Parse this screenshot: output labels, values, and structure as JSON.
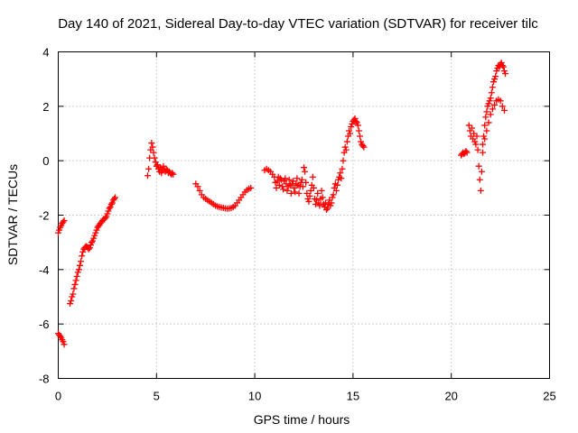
{
  "chart_data": {
    "type": "scatter",
    "title": "Day 140 of 2021, Sidereal Day-to-day VTEC variation (SDTVAR) for receiver tilc",
    "xlabel": "GPS time / hours",
    "ylabel": "SDTVAR / TECUs",
    "xlim": [
      0,
      25
    ],
    "ylim": [
      -8,
      4
    ],
    "xticks": [
      0,
      5,
      10,
      15,
      20,
      25
    ],
    "yticks": [
      -8,
      -6,
      -4,
      -2,
      0,
      2,
      4
    ],
    "xtick_labels": [
      "0",
      "5",
      "10",
      "15",
      "20",
      "25"
    ],
    "ytick_labels": [
      "-8",
      "-6",
      "-4",
      "-2",
      "0",
      "2",
      "4"
    ],
    "grid": true,
    "marker": "+",
    "colors": {
      "series": "#ff0000",
      "grid": "#a0a0a0",
      "frame": "#000000"
    },
    "series": [
      {
        "name": "SDTVAR",
        "points": [
          [
            0.0,
            -6.35
          ],
          [
            0.05,
            -6.4
          ],
          [
            0.1,
            -6.45
          ],
          [
            0.15,
            -6.5
          ],
          [
            0.2,
            -6.58
          ],
          [
            0.25,
            -6.65
          ],
          [
            0.3,
            -6.75
          ],
          [
            0.0,
            -2.65
          ],
          [
            0.05,
            -2.55
          ],
          [
            0.1,
            -2.45
          ],
          [
            0.15,
            -2.38
          ],
          [
            0.2,
            -2.3
          ],
          [
            0.25,
            -2.25
          ],
          [
            0.3,
            -2.2
          ],
          [
            0.6,
            -5.25
          ],
          [
            0.65,
            -5.15
          ],
          [
            0.7,
            -5.0
          ],
          [
            0.75,
            -4.9
          ],
          [
            0.8,
            -4.7
          ],
          [
            0.85,
            -4.55
          ],
          [
            0.9,
            -4.4
          ],
          [
            0.95,
            -4.25
          ],
          [
            1.0,
            -4.1
          ],
          [
            1.05,
            -4.0
          ],
          [
            1.1,
            -3.85
          ],
          [
            1.15,
            -3.7
          ],
          [
            1.2,
            -3.5
          ],
          [
            1.25,
            -3.35
          ],
          [
            1.3,
            -3.25
          ],
          [
            1.35,
            -3.2
          ],
          [
            1.4,
            -3.15
          ],
          [
            1.45,
            -3.15
          ],
          [
            1.5,
            -3.2
          ],
          [
            1.55,
            -3.25
          ],
          [
            1.6,
            -3.2
          ],
          [
            1.65,
            -3.1
          ],
          [
            1.7,
            -3.0
          ],
          [
            1.75,
            -2.95
          ],
          [
            1.8,
            -2.85
          ],
          [
            1.85,
            -2.75
          ],
          [
            1.9,
            -2.65
          ],
          [
            1.95,
            -2.55
          ],
          [
            2.0,
            -2.45
          ],
          [
            2.05,
            -2.4
          ],
          [
            2.1,
            -2.35
          ],
          [
            2.15,
            -2.3
          ],
          [
            2.2,
            -2.25
          ],
          [
            2.25,
            -2.2
          ],
          [
            2.3,
            -2.15
          ],
          [
            2.35,
            -2.15
          ],
          [
            2.4,
            -2.1
          ],
          [
            2.45,
            -2.05
          ],
          [
            2.5,
            -1.95
          ],
          [
            2.55,
            -1.85
          ],
          [
            2.6,
            -1.75
          ],
          [
            2.65,
            -1.7
          ],
          [
            2.7,
            -1.6
          ],
          [
            2.75,
            -1.55
          ],
          [
            2.8,
            -1.45
          ],
          [
            2.85,
            -1.4
          ],
          [
            2.9,
            -1.35
          ],
          [
            4.55,
            -0.55
          ],
          [
            4.6,
            -0.3
          ],
          [
            4.65,
            0.1
          ],
          [
            4.7,
            0.4
          ],
          [
            4.75,
            0.65
          ],
          [
            4.8,
            0.5
          ],
          [
            4.85,
            0.3
          ],
          [
            4.9,
            0.1
          ],
          [
            4.95,
            -0.05
          ],
          [
            5.0,
            -0.2
          ],
          [
            5.05,
            -0.15
          ],
          [
            5.1,
            -0.3
          ],
          [
            5.15,
            -0.4
          ],
          [
            5.2,
            -0.25
          ],
          [
            5.25,
            -0.45
          ],
          [
            5.3,
            -0.35
          ],
          [
            5.35,
            -0.2
          ],
          [
            5.4,
            -0.3
          ],
          [
            5.45,
            -0.4
          ],
          [
            5.5,
            -0.3
          ],
          [
            5.55,
            -0.35
          ],
          [
            5.6,
            -0.45
          ],
          [
            5.65,
            -0.4
          ],
          [
            5.7,
            -0.45
          ],
          [
            5.75,
            -0.5
          ],
          [
            5.8,
            -0.45
          ],
          [
            5.85,
            -0.5
          ],
          [
            7.0,
            -0.85
          ],
          [
            7.1,
            -0.95
          ],
          [
            7.2,
            -1.1
          ],
          [
            7.3,
            -1.25
          ],
          [
            7.4,
            -1.35
          ],
          [
            7.5,
            -1.4
          ],
          [
            7.6,
            -1.45
          ],
          [
            7.7,
            -1.5
          ],
          [
            7.8,
            -1.55
          ],
          [
            7.9,
            -1.6
          ],
          [
            8.0,
            -1.65
          ],
          [
            8.1,
            -1.68
          ],
          [
            8.2,
            -1.7
          ],
          [
            8.3,
            -1.72
          ],
          [
            8.4,
            -1.73
          ],
          [
            8.5,
            -1.75
          ],
          [
            8.6,
            -1.76
          ],
          [
            8.7,
            -1.75
          ],
          [
            8.8,
            -1.74
          ],
          [
            8.9,
            -1.7
          ],
          [
            9.0,
            -1.65
          ],
          [
            9.1,
            -1.55
          ],
          [
            9.2,
            -1.45
          ],
          [
            9.3,
            -1.35
          ],
          [
            9.4,
            -1.25
          ],
          [
            9.5,
            -1.15
          ],
          [
            9.6,
            -1.08
          ],
          [
            9.7,
            -1.03
          ],
          [
            9.8,
            -1.0
          ],
          [
            10.5,
            -0.35
          ],
          [
            10.6,
            -0.3
          ],
          [
            10.7,
            -0.35
          ],
          [
            10.8,
            -0.4
          ],
          [
            10.9,
            -0.5
          ],
          [
            11.0,
            -0.6
          ],
          [
            11.05,
            -0.8
          ],
          [
            11.1,
            -1.0
          ],
          [
            11.15,
            -0.75
          ],
          [
            11.2,
            -0.6
          ],
          [
            11.25,
            -0.9
          ],
          [
            11.3,
            -0.65
          ],
          [
            11.35,
            -0.7
          ],
          [
            11.4,
            -0.95
          ],
          [
            11.45,
            -1.05
          ],
          [
            11.5,
            -0.75
          ],
          [
            11.55,
            -0.65
          ],
          [
            11.6,
            -0.85
          ],
          [
            11.65,
            -1.1
          ],
          [
            11.7,
            -0.95
          ],
          [
            11.75,
            -0.7
          ],
          [
            11.8,
            -0.9
          ],
          [
            11.85,
            -1.2
          ],
          [
            11.9,
            -0.85
          ],
          [
            11.95,
            -0.75
          ],
          [
            12.0,
            -1.0
          ],
          [
            12.05,
            -1.15
          ],
          [
            12.1,
            -0.85
          ],
          [
            12.15,
            -0.65
          ],
          [
            12.2,
            -0.9
          ],
          [
            12.25,
            -1.2
          ],
          [
            12.3,
            -0.95
          ],
          [
            12.35,
            -0.8
          ],
          [
            12.4,
            -0.7
          ],
          [
            12.45,
            -0.95
          ],
          [
            12.5,
            -0.25
          ],
          [
            12.55,
            -0.4
          ],
          [
            12.6,
            -0.8
          ],
          [
            12.65,
            -1.2
          ],
          [
            12.7,
            -1.4
          ],
          [
            12.75,
            -1.5
          ],
          [
            12.8,
            -1.3
          ],
          [
            12.85,
            -1.1
          ],
          [
            12.9,
            -0.9
          ],
          [
            12.95,
            -0.6
          ],
          [
            13.0,
            -1.0
          ],
          [
            13.05,
            -1.4
          ],
          [
            13.1,
            -1.6
          ],
          [
            13.15,
            -1.45
          ],
          [
            13.2,
            -1.2
          ],
          [
            13.25,
            -1.55
          ],
          [
            13.3,
            -1.65
          ],
          [
            13.35,
            -1.4
          ],
          [
            13.4,
            -1.1
          ],
          [
            13.45,
            -1.35
          ],
          [
            13.5,
            -1.6
          ],
          [
            13.55,
            -1.7
          ],
          [
            13.6,
            -1.55
          ],
          [
            13.65,
            -1.8
          ],
          [
            13.7,
            -1.75
          ],
          [
            13.75,
            -1.6
          ],
          [
            13.8,
            -1.45
          ],
          [
            13.85,
            -1.65
          ],
          [
            13.9,
            -1.55
          ],
          [
            13.95,
            -1.35
          ],
          [
            14.0,
            -1.25
          ],
          [
            14.05,
            -1.0
          ],
          [
            14.1,
            -0.85
          ],
          [
            14.15,
            -1.1
          ],
          [
            14.2,
            -0.9
          ],
          [
            14.25,
            -0.7
          ],
          [
            14.3,
            -0.6
          ],
          [
            14.35,
            -0.45
          ],
          [
            14.4,
            -0.65
          ],
          [
            14.45,
            -0.3
          ],
          [
            14.5,
            0.0
          ],
          [
            14.55,
            0.3
          ],
          [
            14.6,
            0.5
          ],
          [
            14.65,
            0.4
          ],
          [
            14.7,
            0.7
          ],
          [
            14.75,
            0.9
          ],
          [
            14.8,
            1.1
          ],
          [
            14.85,
            1.0
          ],
          [
            14.9,
            1.25
          ],
          [
            14.95,
            1.35
          ],
          [
            15.0,
            1.45
          ],
          [
            15.05,
            1.5
          ],
          [
            15.1,
            1.55
          ],
          [
            15.15,
            1.45
          ],
          [
            15.2,
            1.4
          ],
          [
            15.25,
            1.3
          ],
          [
            15.3,
            1.1
          ],
          [
            15.35,
            0.9
          ],
          [
            15.4,
            0.7
          ],
          [
            15.45,
            0.6
          ],
          [
            15.5,
            0.55
          ],
          [
            15.55,
            0.5
          ],
          [
            20.5,
            0.2
          ],
          [
            20.55,
            0.25
          ],
          [
            20.6,
            0.3
          ],
          [
            20.65,
            0.25
          ],
          [
            20.7,
            0.3
          ],
          [
            20.75,
            0.35
          ],
          [
            20.8,
            0.3
          ],
          [
            20.9,
            1.3
          ],
          [
            20.95,
            1.1
          ],
          [
            21.0,
            0.9
          ],
          [
            21.05,
            1.2
          ],
          [
            21.1,
            0.8
          ],
          [
            21.15,
            1.0
          ],
          [
            21.2,
            0.7
          ],
          [
            21.25,
            0.6
          ],
          [
            21.3,
            0.9
          ],
          [
            21.35,
            0.4
          ],
          [
            21.4,
            -0.2
          ],
          [
            21.45,
            -0.7
          ],
          [
            21.5,
            -1.1
          ],
          [
            21.55,
            -0.4
          ],
          [
            21.6,
            0.3
          ],
          [
            21.65,
            0.9
          ],
          [
            21.7,
            1.3
          ],
          [
            21.75,
            1.6
          ],
          [
            21.8,
            1.8
          ],
          [
            21.85,
            2.0
          ],
          [
            21.9,
            2.1
          ],
          [
            21.95,
            2.2
          ],
          [
            22.0,
            2.3
          ],
          [
            22.05,
            2.5
          ],
          [
            22.1,
            2.7
          ],
          [
            22.15,
            2.9
          ],
          [
            22.2,
            3.0
          ],
          [
            22.25,
            3.1
          ],
          [
            22.3,
            3.3
          ],
          [
            22.35,
            3.4
          ],
          [
            22.4,
            3.5
          ],
          [
            22.45,
            3.45
          ],
          [
            22.5,
            3.55
          ],
          [
            22.55,
            3.6
          ],
          [
            22.6,
            3.5
          ],
          [
            22.65,
            3.45
          ],
          [
            22.7,
            3.3
          ],
          [
            22.75,
            3.2
          ],
          [
            21.6,
            0.6
          ],
          [
            21.7,
            0.8
          ],
          [
            21.8,
            1.1
          ],
          [
            21.9,
            1.4
          ],
          [
            22.0,
            1.7
          ],
          [
            22.1,
            1.9
          ],
          [
            22.2,
            2.05
          ],
          [
            22.3,
            2.2
          ],
          [
            22.4,
            2.25
          ],
          [
            22.5,
            2.2
          ],
          [
            22.6,
            2.0
          ],
          [
            22.7,
            1.85
          ]
        ]
      }
    ]
  }
}
